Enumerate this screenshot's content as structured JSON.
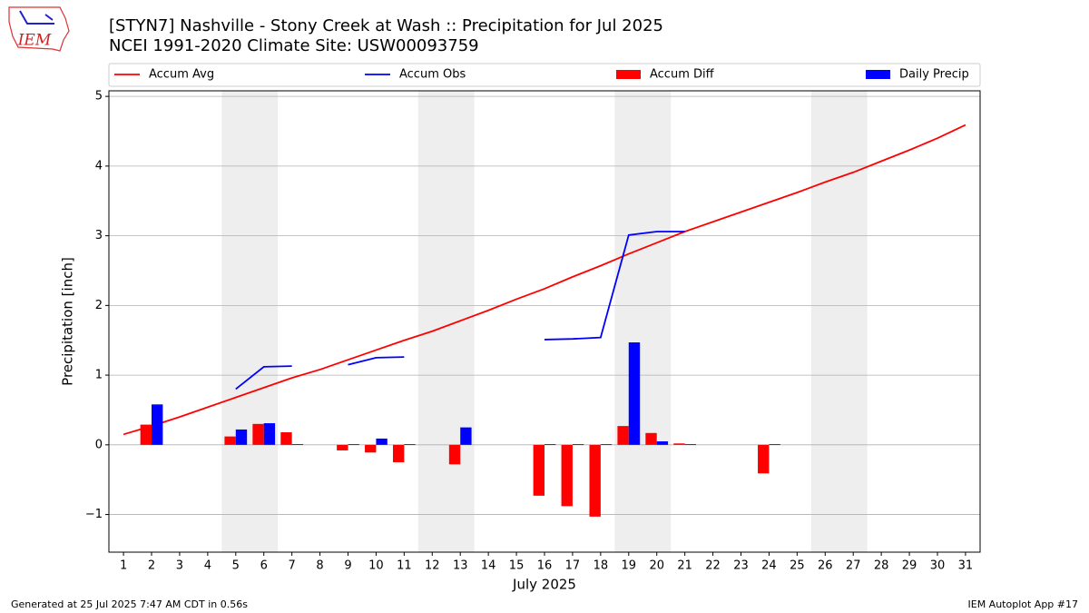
{
  "chart_data": {
    "type": "line_bar",
    "title": "[STYN7] Nashville - Stony Creek at Wash :: Precipitation for Jul 2025",
    "subtitle": "NCEI 1991-2020 Climate Site: USW00093759",
    "xlabel": "July 2025",
    "ylabel": "Precipitation [inch]",
    "logo_text": "IEM",
    "footer_left": "Generated at 25 Jul 2025 7:47 AM CDT in 0.56s",
    "footer_right": "IEM Autoplot App #17",
    "x": [
      1,
      2,
      3,
      4,
      5,
      6,
      7,
      8,
      9,
      10,
      11,
      12,
      13,
      14,
      15,
      16,
      17,
      18,
      19,
      20,
      21,
      22,
      23,
      24,
      25,
      26,
      27,
      28,
      29,
      30,
      31
    ],
    "xlim": [
      0.48,
      31.52
    ],
    "xticks": [
      1,
      2,
      3,
      4,
      5,
      6,
      7,
      8,
      9,
      10,
      11,
      12,
      13,
      14,
      15,
      16,
      17,
      18,
      19,
      20,
      21,
      22,
      23,
      24,
      25,
      26,
      27,
      28,
      29,
      30,
      31
    ],
    "ylim": [
      -1.54,
      5.08
    ],
    "yticks": [
      {
        "value": -1,
        "label": "−1"
      },
      0,
      1,
      2,
      3,
      4,
      5
    ],
    "grid": true,
    "shaded_spans": [
      [
        4.5,
        6.5
      ],
      [
        11.5,
        13.5
      ],
      [
        18.5,
        20.5
      ],
      [
        25.5,
        27.5
      ]
    ],
    "shade_color": "#eeeeee",
    "series": [
      {
        "name": "Accum Avg",
        "kind": "line",
        "color": "#ff0000",
        "values": [
          0.15,
          0.27,
          0.4,
          0.54,
          0.68,
          0.82,
          0.96,
          1.08,
          1.22,
          1.36,
          1.5,
          1.63,
          1.78,
          1.93,
          2.09,
          2.24,
          2.41,
          2.57,
          2.74,
          2.9,
          3.06,
          3.2,
          3.34,
          3.48,
          3.62,
          3.77,
          3.91,
          4.07,
          4.23,
          4.4,
          4.59
        ]
      },
      {
        "name": "Accum Obs",
        "kind": "line",
        "color": "#0000ff",
        "values": [
          null,
          null,
          null,
          null,
          0.8,
          1.12,
          1.13,
          null,
          1.15,
          1.25,
          1.26,
          null,
          null,
          null,
          null,
          1.51,
          1.52,
          1.54,
          3.01,
          3.06,
          3.06,
          null,
          null,
          null,
          null,
          null,
          null,
          null,
          null,
          null,
          null
        ]
      },
      {
        "name": "Accum Diff",
        "kind": "bar",
        "offset": -1,
        "color": "#ff0000",
        "values": [
          null,
          0.29,
          null,
          null,
          0.12,
          0.3,
          0.18,
          null,
          -0.08,
          -0.11,
          -0.25,
          null,
          -0.28,
          null,
          null,
          -0.73,
          -0.88,
          -1.03,
          0.27,
          0.17,
          0.02,
          null,
          null,
          -0.41,
          null,
          null,
          null,
          null,
          null,
          null,
          null
        ]
      },
      {
        "name": "Daily Precip",
        "kind": "bar",
        "offset": 0,
        "color": "#0000ff",
        "values": [
          null,
          0.58,
          null,
          null,
          0.22,
          0.31,
          0.01,
          null,
          0.01,
          0.09,
          0.01,
          null,
          0.25,
          null,
          null,
          0.01,
          0.01,
          0.01,
          1.47,
          0.05,
          0.01,
          null,
          null,
          0.01,
          null,
          null,
          null,
          null,
          null,
          null,
          null
        ]
      }
    ]
  }
}
